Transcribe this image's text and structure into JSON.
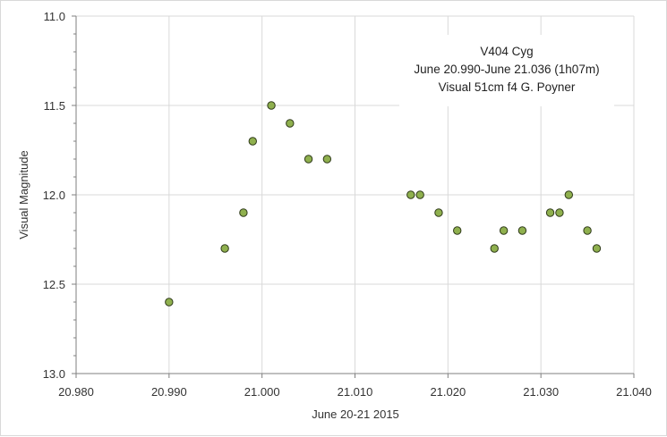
{
  "chart_data": {
    "type": "scatter",
    "annotation": [
      "V404 Cyg",
      "June 20.990-June 21.036 (1h07m)",
      "Visual  51cm f4   G. Poyner"
    ],
    "xlabel": "June 20-21 2015",
    "ylabel": "Visual Magnitude",
    "xlim": [
      20.98,
      21.04
    ],
    "ylim": [
      11.0,
      13.0
    ],
    "y_inverted": true,
    "x_ticks": [
      "20.980",
      "20.990",
      "21.000",
      "21.010",
      "21.020",
      "21.030",
      "21.040"
    ],
    "y_ticks": [
      "11.0",
      "11.5",
      "12.0",
      "12.5",
      "13.0"
    ],
    "grid": true,
    "marker_color": "#8fb04e",
    "marker_edge": "#2f3a1a",
    "series": [
      {
        "x": [
          20.99,
          20.996,
          20.998,
          20.999,
          21.001,
          21.003,
          21.005,
          21.007,
          21.016,
          21.017,
          21.019,
          21.021,
          21.025,
          21.026,
          21.028,
          21.031,
          21.032,
          21.033,
          21.035,
          21.036
        ],
        "y": [
          12.6,
          12.3,
          12.1,
          11.7,
          11.5,
          11.6,
          11.8,
          11.8,
          12.0,
          12.0,
          12.1,
          12.2,
          12.3,
          12.2,
          12.2,
          12.1,
          12.1,
          12.0,
          12.2,
          12.3
        ]
      }
    ]
  }
}
